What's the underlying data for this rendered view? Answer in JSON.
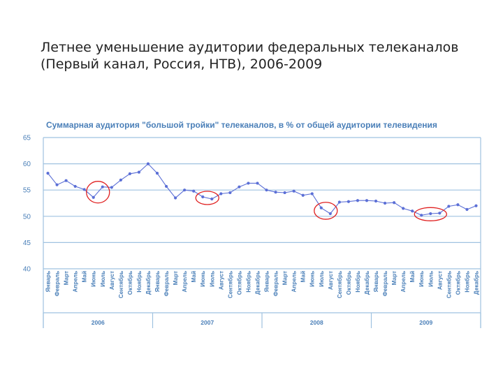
{
  "slide": {
    "title_line1": "Летнее уменьшение аудитории федеральных телеканалов",
    "title_line2": "(Первый канал, Россия, НТВ), 2006-2009"
  },
  "colors": {
    "axis_text": "#4a7fb8",
    "grid": "#9fc2e0",
    "line": "#5b6fd6",
    "highlight": "#e02020"
  },
  "chart_data": {
    "type": "line",
    "title": "Суммарная аудитория \"большой тройки\" телеканалов, в % от общей аудитории телевидения",
    "ylim": [
      40,
      65
    ],
    "yticks": [
      "65",
      "60",
      "55",
      "50",
      "45",
      "40"
    ],
    "ytick_values": [
      65,
      60,
      55,
      50,
      45,
      40
    ],
    "grid": true,
    "categories": [
      "Январь",
      "Февраль",
      "Март",
      "Апрель",
      "Май",
      "Июнь",
      "Июль",
      "Август",
      "Сентябрь",
      "Октябрь",
      "Ноябрь",
      "Декабрь",
      "Январь",
      "Февраль",
      "Март",
      "Апрель",
      "Май",
      "Июнь",
      "Июль",
      "Август",
      "Сентябрь",
      "Октябрь",
      "Ноябрь",
      "Декабрь",
      "Январь",
      "Февраль",
      "Март",
      "Апрель",
      "Май",
      "Июнь",
      "Июль",
      "Август",
      "Сентябрь",
      "Октябрь",
      "Ноябрь",
      "Декабрь",
      "Январь",
      "Февраль",
      "Март",
      "Апрель",
      "Май",
      "Июнь",
      "Июль",
      "Август",
      "Сентябрь",
      "Октябрь",
      "Ноябрь",
      "Декабрь"
    ],
    "years": [
      "2006",
      "2007",
      "2008",
      "2009"
    ],
    "values": [
      58.2,
      56.0,
      56.8,
      55.7,
      55.1,
      53.6,
      55.6,
      55.5,
      56.9,
      58.1,
      58.4,
      60.0,
      58.2,
      55.7,
      53.5,
      55.0,
      54.8,
      53.7,
      53.3,
      54.3,
      54.5,
      55.6,
      56.3,
      56.3,
      55.0,
      54.6,
      54.5,
      54.8,
      54.0,
      54.3,
      51.6,
      50.5,
      52.7,
      52.8,
      53.0,
      53.0,
      52.9,
      52.5,
      52.6,
      51.5,
      51.0,
      50.2,
      50.5,
      50.6,
      51.9,
      52.2,
      51.3,
      52.0
    ],
    "highlighted_ranges": [
      [
        5,
        6
      ],
      [
        17,
        18
      ],
      [
        30,
        31
      ],
      [
        41,
        43
      ]
    ]
  }
}
